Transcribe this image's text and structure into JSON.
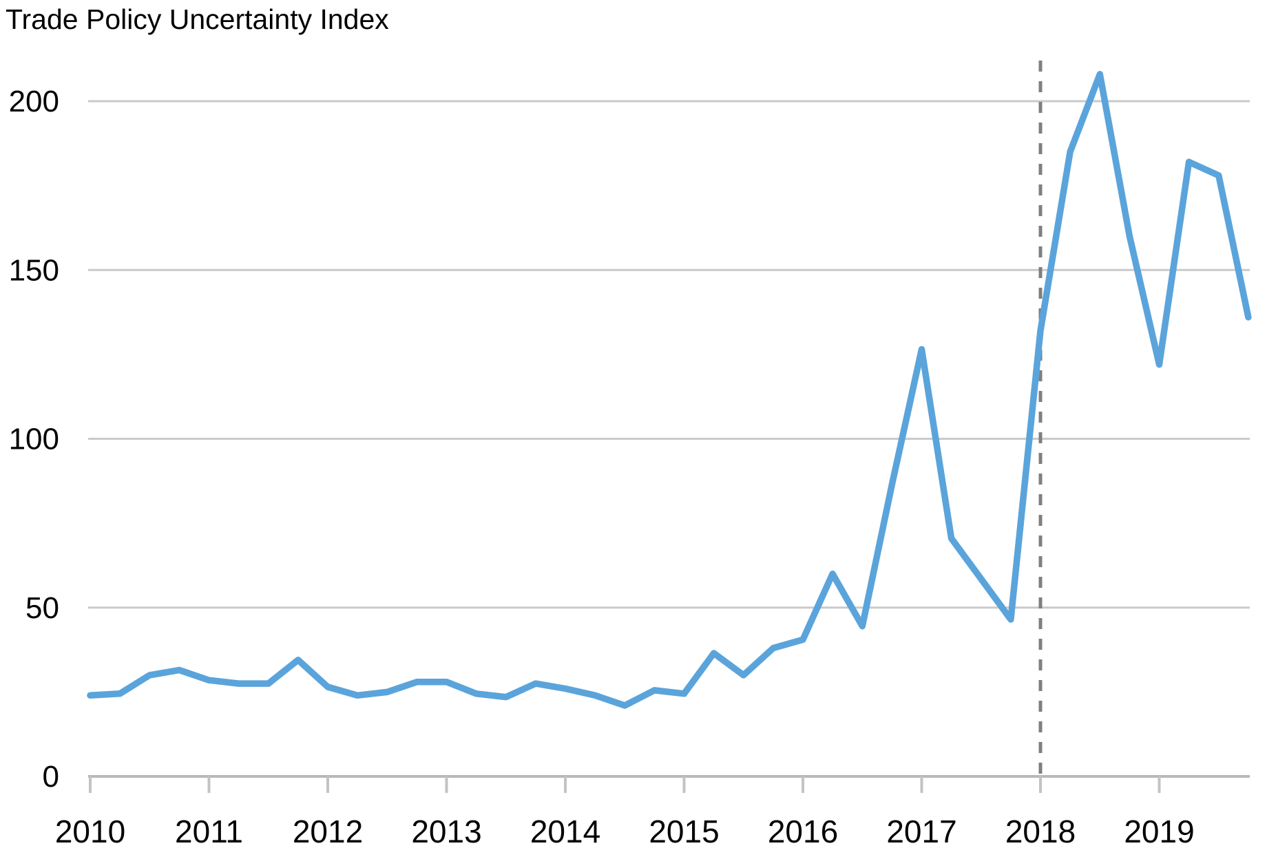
{
  "chart_data": {
    "type": "line",
    "title": "Trade Policy Uncertainty Index",
    "series_name": "Trade Policy Uncertainty Index",
    "x_unit": "quarter",
    "x": [
      "2010Q1",
      "2010Q2",
      "2010Q3",
      "2010Q4",
      "2011Q1",
      "2011Q2",
      "2011Q3",
      "2011Q4",
      "2012Q1",
      "2012Q2",
      "2012Q3",
      "2012Q4",
      "2013Q1",
      "2013Q2",
      "2013Q3",
      "2013Q4",
      "2014Q1",
      "2014Q2",
      "2014Q3",
      "2014Q4",
      "2015Q1",
      "2015Q2",
      "2015Q3",
      "2015Q4",
      "2016Q1",
      "2016Q2",
      "2016Q3",
      "2016Q4",
      "2017Q1",
      "2017Q2",
      "2017Q3",
      "2017Q4",
      "2018Q1",
      "2018Q2",
      "2018Q3",
      "2018Q4",
      "2019Q1",
      "2019Q2",
      "2019Q3",
      "2019Q4"
    ],
    "values": [
      24,
      24.5,
      30,
      31.5,
      28.5,
      27.5,
      27.5,
      34.5,
      26.5,
      24,
      25,
      28,
      28,
      24.5,
      23.5,
      27.5,
      26,
      24,
      21,
      25.5,
      24.5,
      36.5,
      30,
      38,
      40.5,
      60,
      44.5,
      86.5,
      126.5,
      70.5,
      58.5,
      46.5,
      132,
      185,
      208,
      160,
      122,
      182,
      178,
      136
    ],
    "xtick_labels": [
      "2010",
      "2011",
      "2012",
      "2013",
      "2014",
      "2015",
      "2016",
      "2017",
      "2018",
      "2019"
    ],
    "ytick_labels": [
      "0",
      "50",
      "100",
      "150",
      "200"
    ],
    "yticks": [
      0,
      50,
      100,
      150,
      200
    ],
    "ylim": [
      0,
      212
    ],
    "grid": "horizontal",
    "legend_position": "none",
    "annotations": [
      {
        "type": "vline",
        "x": "2018Q1",
        "style": "dashed",
        "label": ""
      }
    ],
    "colors": {
      "line": "#5AA4DB",
      "gridline": "#CACACA",
      "axis": "#B9B9B9",
      "tick": "#C3C3C3",
      "dashed_line": "#7F7F7F",
      "text": "#000000"
    }
  }
}
